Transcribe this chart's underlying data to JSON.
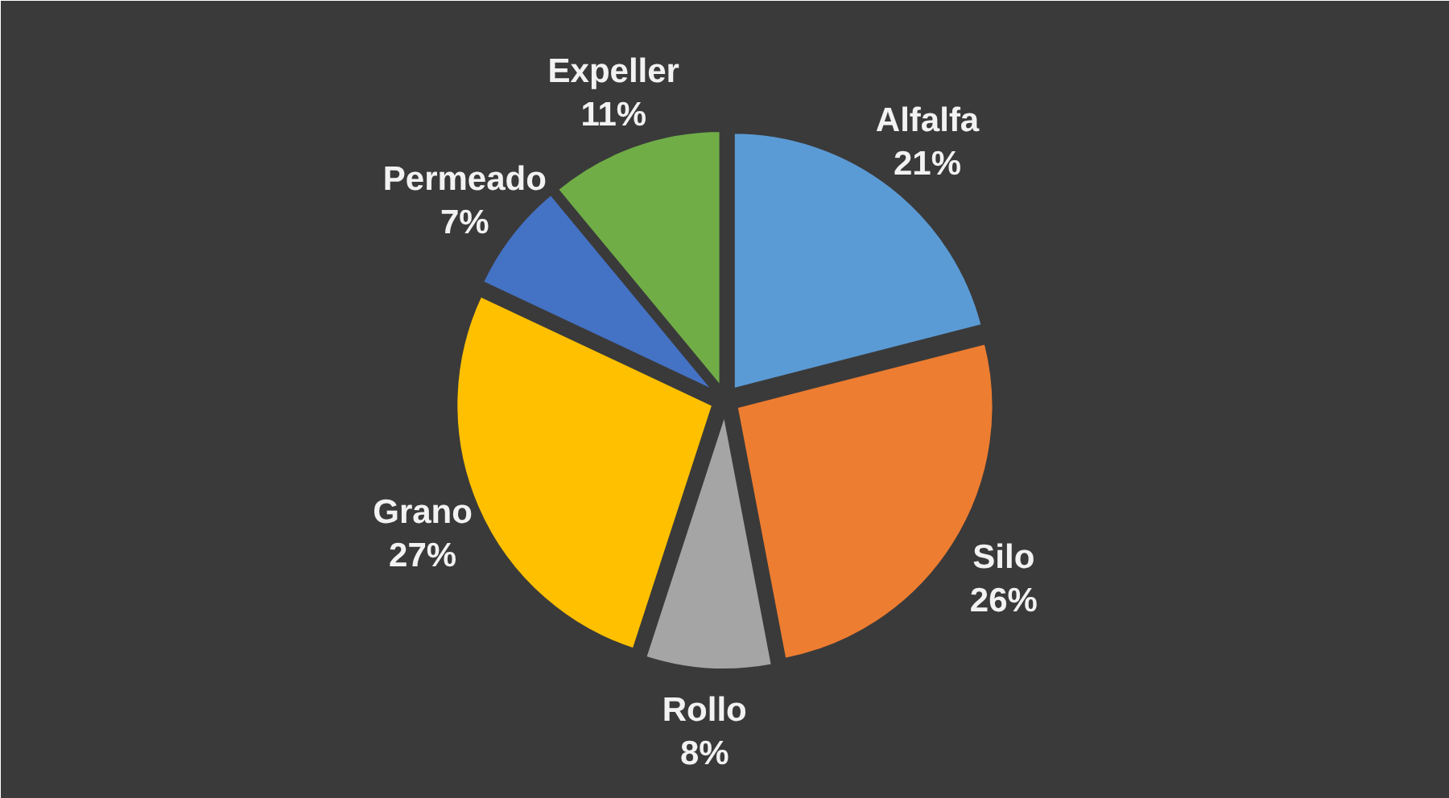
{
  "chart_data": {
    "type": "pie",
    "categories": [
      "Alfalfa",
      "Silo",
      "Rollo",
      "Grano",
      "Permeado",
      "Expeller"
    ],
    "values": [
      21,
      26,
      8,
      27,
      7,
      11
    ],
    "value_labels": [
      "21%",
      "26%",
      "8%",
      "27%",
      "7%",
      "11%"
    ],
    "colors": [
      "#5b9bd5",
      "#ed7d31",
      "#a5a5a5",
      "#ffc000",
      "#4472c4",
      "#70ad47"
    ]
  }
}
